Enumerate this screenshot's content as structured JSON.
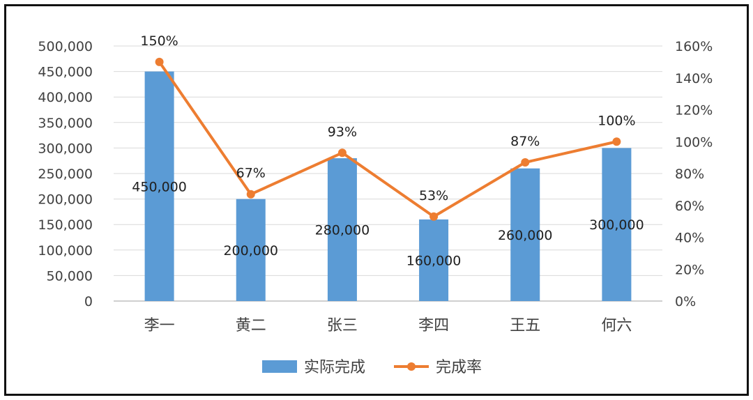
{
  "chart_data": {
    "type": "bar",
    "title": "",
    "xlabel": "",
    "ylabel": "",
    "categories": [
      "李一",
      "黄二",
      "张三",
      "李四",
      "王五",
      "何六"
    ],
    "series": [
      {
        "name": "实际完成",
        "type": "bar",
        "axis": "left",
        "color": "#5b9bd5",
        "values": [
          450000,
          200000,
          280000,
          160000,
          260000,
          300000
        ],
        "labels": [
          "450,000",
          "200,000",
          "280,000",
          "160,000",
          "260,000",
          "300,000"
        ]
      },
      {
        "name": "完成率",
        "type": "line",
        "axis": "right",
        "color": "#ed7d31",
        "marker": "circle",
        "values": [
          1.5,
          0.67,
          0.93,
          0.53,
          0.87,
          1.0
        ],
        "labels": [
          "150%",
          "67%",
          "93%",
          "53%",
          "87%",
          "100%"
        ]
      }
    ],
    "ylim_left": [
      0,
      500000
    ],
    "ylim_right": [
      0,
      1.6
    ],
    "left_ticks": [
      "0",
      "50,000",
      "100,000",
      "150,000",
      "200,000",
      "250,000",
      "300,000",
      "350,000",
      "400,000",
      "450,000",
      "500,000"
    ],
    "right_ticks": [
      "0%",
      "20%",
      "40%",
      "60%",
      "80%",
      "100%",
      "120%",
      "140%",
      "160%"
    ],
    "grid": true,
    "legend_position": "bottom"
  }
}
